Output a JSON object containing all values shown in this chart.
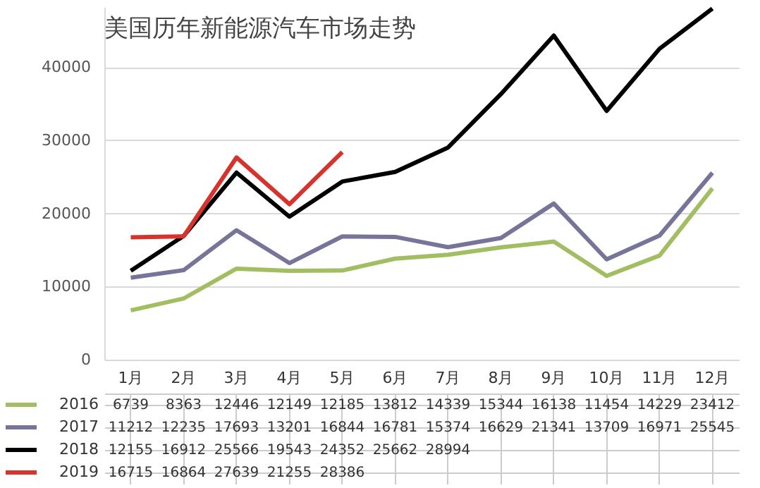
{
  "chart_data": {
    "type": "line",
    "title": "美国历年新能源汽车市场走势",
    "categories": [
      "1月",
      "2月",
      "3月",
      "4月",
      "5月",
      "6月",
      "7月",
      "8月",
      "9月",
      "10月",
      "11月",
      "12月"
    ],
    "series": [
      {
        "name": "2016",
        "color": "#a3bd62",
        "values": [
          6739,
          8363,
          12446,
          12149,
          12185,
          13812,
          14339,
          15344,
          16138,
          11454,
          14229,
          23412
        ],
        "value_labels": [
          "6739",
          "8363",
          "12446",
          "12149",
          "12185",
          "13812",
          "14339",
          "15344",
          "16138",
          "11454",
          "14229",
          "23412"
        ]
      },
      {
        "name": "2017",
        "color": "#77749a",
        "values": [
          11212,
          12235,
          17693,
          13201,
          16844,
          16781,
          15374,
          16629,
          21341,
          13709,
          16971,
          25545
        ],
        "value_labels": [
          "11212",
          "12235",
          "17693",
          "13201",
          "16844",
          "16781",
          "15374",
          "16629",
          "21341",
          "13709",
          "16971",
          "25545"
        ]
      },
      {
        "name": "2018",
        "color": "#000000",
        "values": [
          12155,
          16912,
          25566,
          19543,
          24352,
          25662,
          28994,
          36300,
          44300,
          34000,
          42500,
          48000
        ],
        "value_labels": [
          "12155",
          "16912",
          "25566",
          "19543",
          "24352",
          "25662",
          "28994",
          null,
          null,
          null,
          null,
          null
        ]
      },
      {
        "name": "2019",
        "color": "#d8322c",
        "values": [
          16715,
          16864,
          27639,
          21255,
          28386,
          null,
          null,
          null,
          null,
          null,
          null,
          null
        ],
        "value_labels": [
          "16715",
          "16864",
          "27639",
          "21255",
          "28386",
          null,
          null,
          null,
          null,
          null,
          null,
          null
        ]
      }
    ],
    "ylim": [
      0,
      48200
    ],
    "yticks": [
      0,
      10000,
      20000,
      30000,
      40000
    ],
    "grid": "y",
    "legend": "bottom",
    "line_style": "solid",
    "marker": "none"
  }
}
